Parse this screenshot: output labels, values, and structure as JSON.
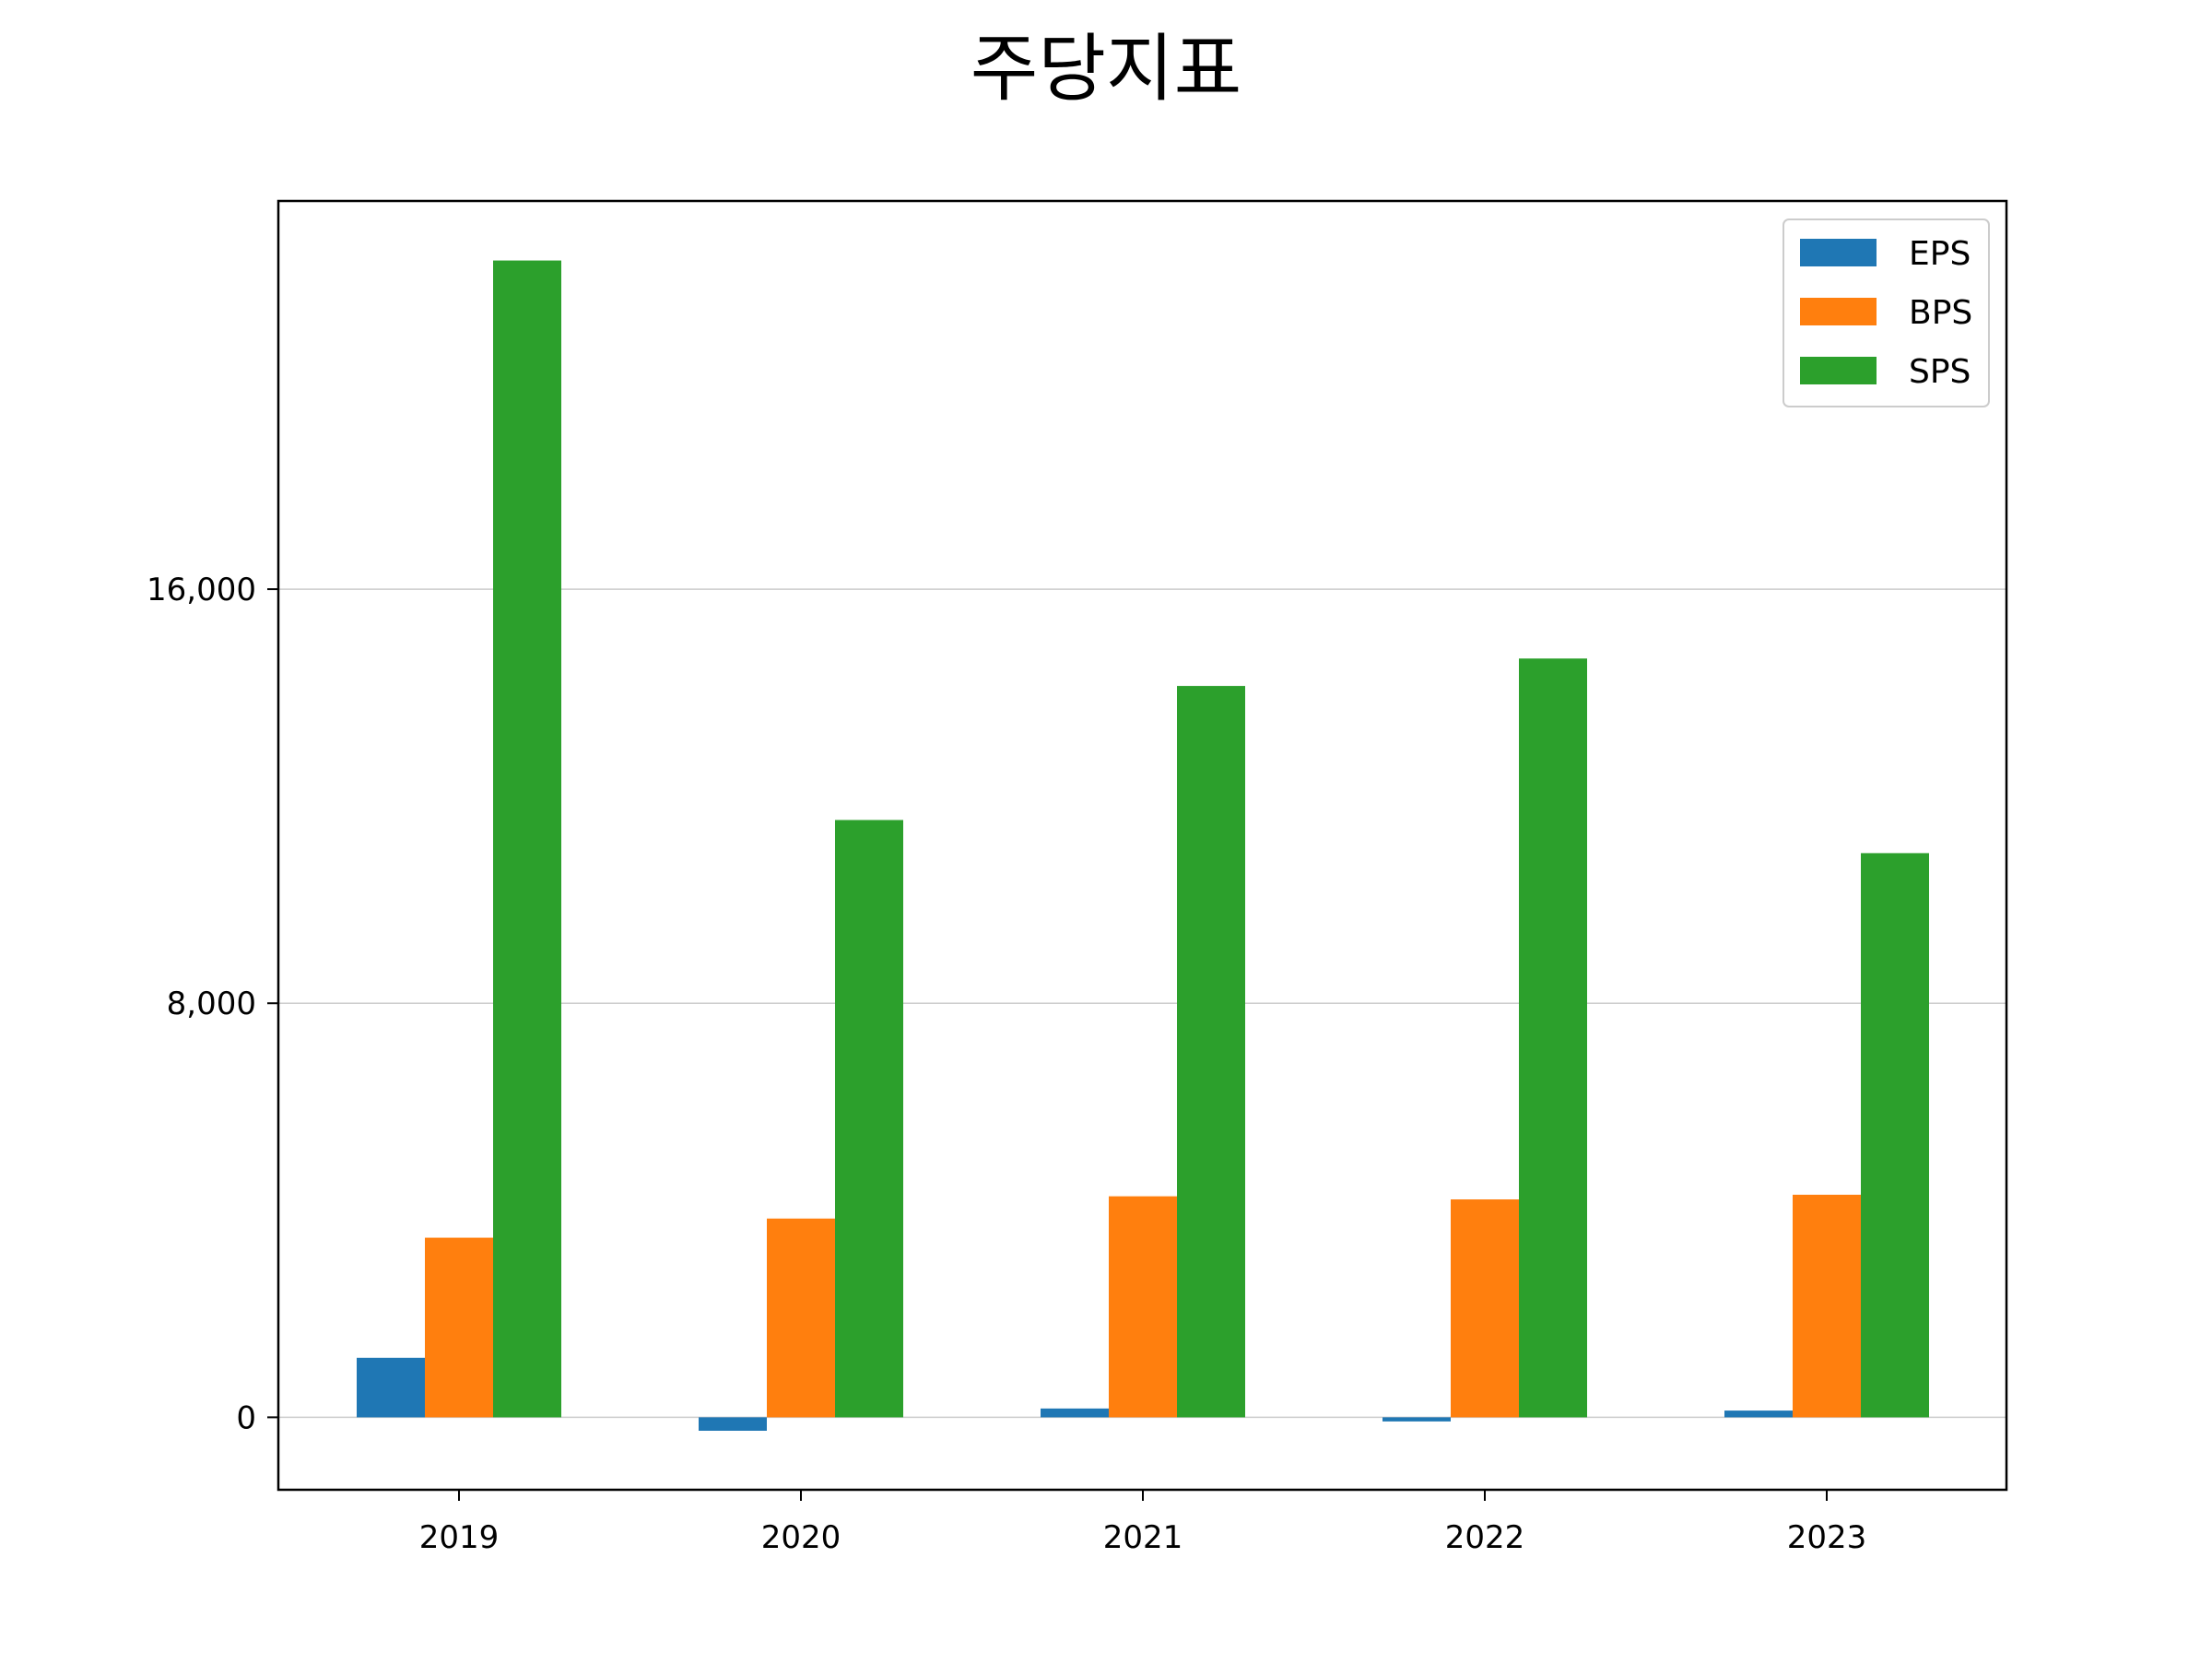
{
  "chart_data": {
    "type": "bar",
    "title": "주당지표",
    "xlabel": "",
    "ylabel": "",
    "categories": [
      "2019",
      "2020",
      "2021",
      "2022",
      "2023"
    ],
    "series": [
      {
        "name": "EPS",
        "values": [
          1150,
          -260,
          170,
          -80,
          130
        ],
        "color": "#1f77b4"
      },
      {
        "name": "BPS",
        "values": [
          3470,
          3840,
          4270,
          4210,
          4300
        ],
        "color": "#ff7f0e"
      },
      {
        "name": "SPS",
        "values": [
          22350,
          11540,
          14130,
          14660,
          10900
        ],
        "color": "#2ca02c"
      }
    ],
    "ylim": [
      -1400,
      23500
    ],
    "yticks": [
      0,
      8000,
      16000
    ],
    "ytick_labels": [
      "0",
      "8,000",
      "16,000"
    ],
    "grid": "y",
    "legend_position": "top-right"
  }
}
